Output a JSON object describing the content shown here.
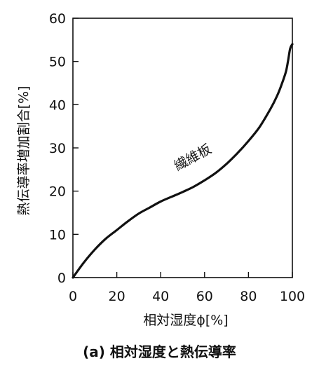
{
  "chart_data": {
    "type": "line",
    "title": "",
    "xlabel": "相対湿度ϕ[%]",
    "ylabel": "熱伝導率増加割合[%]",
    "xlim": [
      0,
      100
    ],
    "ylim": [
      0,
      60
    ],
    "xticks": [
      "0",
      "20",
      "40",
      "60",
      "80",
      "100"
    ],
    "yticks": [
      "0",
      "10",
      "20",
      "30",
      "40",
      "50",
      "60"
    ],
    "grid": false,
    "series": [
      {
        "name": "繊維板",
        "x": [
          0,
          5,
          10,
          15,
          20,
          25,
          30,
          35,
          40,
          45,
          50,
          55,
          60,
          65,
          70,
          75,
          80,
          85,
          90,
          93,
          95,
          97,
          98,
          99,
          100
        ],
        "y": [
          0,
          3.5,
          6.5,
          9,
          11,
          13,
          14.8,
          16.2,
          17.6,
          18.7,
          19.8,
          21,
          22.5,
          24.2,
          26.3,
          28.8,
          31.6,
          34.8,
          39,
          42,
          44.5,
          47.5,
          50,
          53,
          54
        ]
      }
    ],
    "annotation": "繊維板"
  },
  "caption": "(a) 相対湿度と熱伝導率"
}
